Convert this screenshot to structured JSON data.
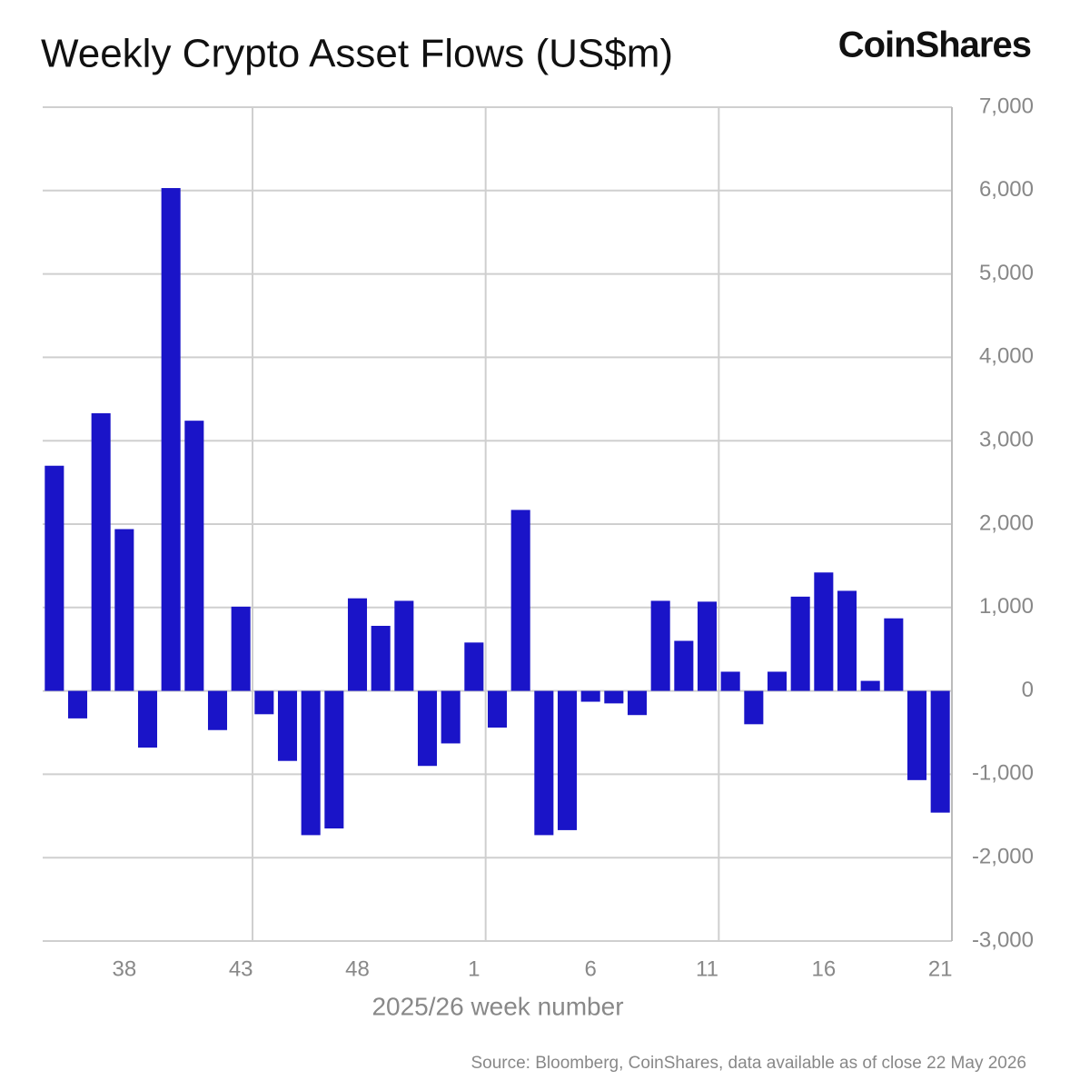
{
  "chart_data": {
    "type": "bar",
    "title": "Weekly Crypto Asset Flows (US$m)",
    "brand": "CoinShares",
    "x_label": "2025/26 week number",
    "source": "Source: Bloomberg, CoinShares, data available as of close 22 May 2026",
    "categories": [
      null,
      null,
      null,
      "38",
      null,
      null,
      null,
      null,
      "43",
      null,
      null,
      null,
      null,
      "48",
      null,
      null,
      null,
      null,
      "1",
      null,
      null,
      null,
      null,
      "6",
      null,
      null,
      null,
      null,
      "11",
      null,
      null,
      null,
      null,
      "16",
      null,
      null,
      null,
      null,
      "21"
    ],
    "values": [
      2700,
      -330,
      3330,
      1940,
      -680,
      6030,
      3240,
      -470,
      1010,
      -280,
      -840,
      -1730,
      -1650,
      1110,
      780,
      1080,
      -900,
      -630,
      580,
      -440,
      2170,
      -1730,
      -1670,
      -130,
      -150,
      -290,
      1080,
      600,
      1070,
      230,
      -400,
      230,
      1130,
      1420,
      1200,
      120,
      870,
      -1070,
      -1460
    ],
    "color": "#1a14c8",
    "ylim": [
      -3000,
      7000
    ],
    "yticks": [
      {
        "value": -3000,
        "label": "-3,000"
      },
      {
        "value": -2000,
        "label": "-2,000"
      },
      {
        "value": -1000,
        "label": "-1,000"
      },
      0,
      {
        "value": 1000,
        "label": "1,000"
      },
      {
        "value": 2000,
        "label": "2,000"
      },
      {
        "value": 3000,
        "label": "3,000"
      },
      {
        "value": 4000,
        "label": "4,000"
      },
      {
        "value": 5000,
        "label": "5,000"
      },
      {
        "value": 6000,
        "label": "6,000"
      },
      {
        "value": 7000,
        "label": "7,000"
      }
    ],
    "grid": true
  }
}
